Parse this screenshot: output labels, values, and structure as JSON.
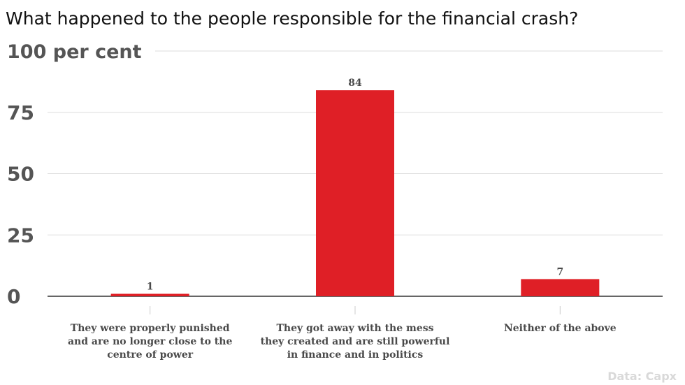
{
  "chart_data": {
    "type": "bar",
    "title": "What happened to the people responsible for the financial crash?",
    "categories": [
      [
        "They were properly punished",
        "and are no longer close to the",
        "centre of power"
      ],
      [
        "They got away with the mess",
        "they created and are still powerful",
        "in finance and in politics"
      ],
      [
        "Neither of the above"
      ]
    ],
    "values": [
      1,
      84,
      7
    ],
    "y_ticks": [
      "0",
      "25",
      "50",
      "75",
      "100 per cent"
    ],
    "ylim": [
      0,
      100
    ],
    "grid": true,
    "bar_color": "#df1f26",
    "source": "Data: Capx"
  }
}
